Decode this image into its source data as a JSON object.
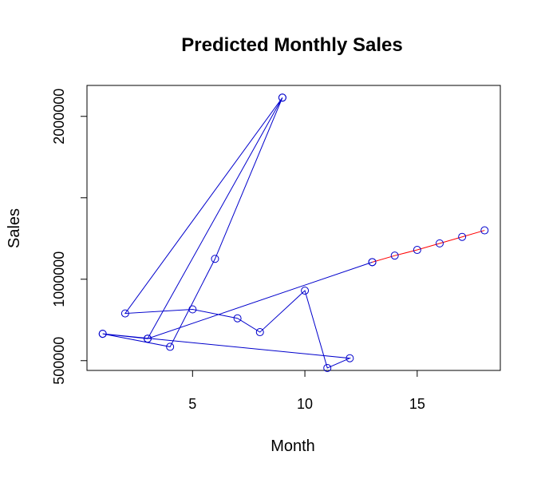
{
  "chart_data": {
    "type": "line",
    "title": "Predicted Monthly Sales",
    "xlabel": "Month",
    "ylabel": "Sales",
    "xlim": [
      0.3,
      18.7
    ],
    "ylim": [
      440000,
      2190000
    ],
    "xticks": [
      5,
      10,
      15
    ],
    "yticks": [
      500000,
      1000000,
      1500000,
      2000000
    ],
    "ytick_labels": [
      "500000",
      "1000000",
      "",
      "2000000"
    ],
    "grid": false,
    "legend": "none",
    "series": [
      {
        "color": "#0000cc",
        "marker": "circle",
        "x": [
          9,
          3,
          1,
          4,
          6,
          9,
          2,
          5,
          7,
          8,
          10,
          11,
          12,
          1,
          3,
          13
        ],
        "y": [
          2115000,
          635000,
          665000,
          585000,
          1125000,
          2115000,
          790000,
          815000,
          760000,
          675000,
          930000,
          455000,
          515000,
          665000,
          635000,
          1105000
        ]
      },
      {
        "color": "#ff0000",
        "marker": "circle",
        "x": [
          13,
          14,
          15,
          16,
          17,
          18
        ],
        "y": [
          1105000,
          1145000,
          1180000,
          1220000,
          1260000,
          1300000
        ]
      }
    ]
  }
}
